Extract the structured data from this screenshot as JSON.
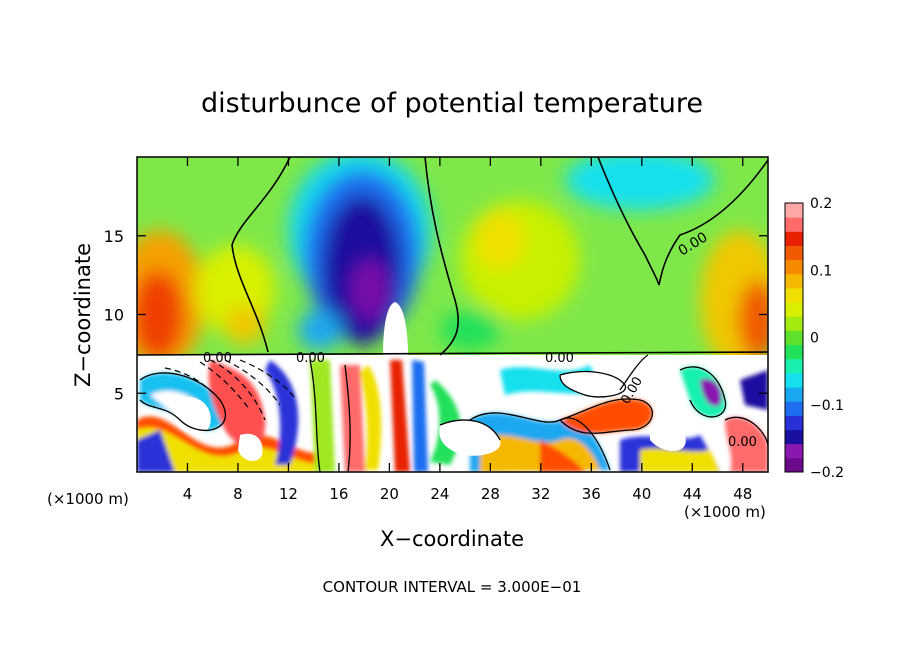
{
  "chart_data": {
    "type": "heatmap",
    "title": "disturbunce of potential temperature",
    "xlabel": "X−coordinate",
    "ylabel": "Z−coordinate",
    "x_unit_left": "(×1000 m)",
    "x_unit_right": "(×1000 m)",
    "xlim": [
      0,
      50
    ],
    "ylim": [
      0,
      20
    ],
    "x_ticks": [
      4,
      8,
      12,
      16,
      20,
      24,
      28,
      32,
      36,
      40,
      44,
      48
    ],
    "y_ticks": [
      5,
      10,
      15
    ],
    "colorbar": {
      "range": [
        -0.2,
        0.2
      ],
      "tick_values": [
        0.2,
        0.1,
        0,
        -0.1,
        -0.2
      ],
      "tick_labels": [
        "0.2",
        "0.1",
        "0",
        "−0.1",
        "−0.2"
      ],
      "colors": [
        "#6a0a8a",
        "#8a18b0",
        "#1a10a0",
        "#2a30d8",
        "#1f6ef0",
        "#1aa8f0",
        "#14e0ee",
        "#19f0b0",
        "#22e05a",
        "#5fe02a",
        "#a2ea10",
        "#d8f000",
        "#f0e000",
        "#f5b800",
        "#f58a00",
        "#f05a00",
        "#e82000",
        "#ff6a6a",
        "#ffa8a8"
      ]
    },
    "contour_labels": [
      "0.00",
      "0.00",
      "0.00",
      "0.00",
      "0.00",
      "0.00"
    ],
    "footnote": "CONTOUR INTERVAL = 3.000E−01",
    "upper_field_profile": {
      "x": [
        0,
        4,
        8,
        10,
        12,
        14,
        16,
        18,
        20,
        22,
        24,
        26,
        28,
        30,
        32,
        34,
        36,
        38,
        40,
        42,
        44,
        46,
        48,
        50
      ],
      "value": [
        0.15,
        0.12,
        0.05,
        0.02,
        0.0,
        -0.06,
        -0.14,
        -0.19,
        -0.17,
        -0.09,
        -0.02,
        0.0,
        0.03,
        0.02,
        0.0,
        0.01,
        0.03,
        0.0,
        -0.02,
        -0.03,
        0.0,
        0.04,
        0.09,
        0.14
      ]
    }
  }
}
